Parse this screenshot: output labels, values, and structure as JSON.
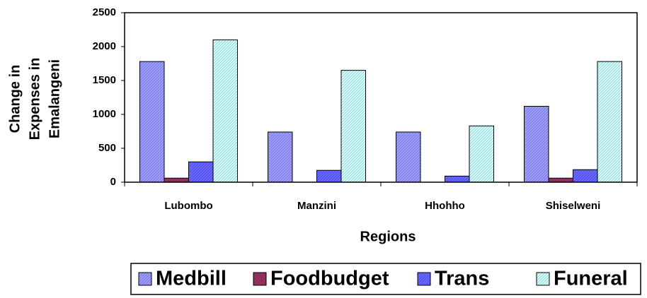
{
  "chart_data": {
    "type": "bar",
    "y_label": [
      "Change in",
      "Expenses in",
      "Emalangeni"
    ],
    "x_label": "Regions",
    "categories": [
      "Lubombo",
      "Manzini",
      "Hhohho",
      "Shiselweni"
    ],
    "series": [
      {
        "name": "Medbill",
        "color": "#9999ff",
        "values": [
          1780,
          740,
          740,
          1120
        ]
      },
      {
        "name": "Foodbudget",
        "color": "#993366",
        "values": [
          60,
          0,
          0,
          60
        ]
      },
      {
        "name": "Trans",
        "color": "#6666ff",
        "values": [
          300,
          175,
          90,
          185
        ]
      },
      {
        "name": "Funeral",
        "color": "#ccffff",
        "values": [
          2100,
          1650,
          830,
          1780
        ]
      }
    ],
    "ylim": [
      0,
      2500
    ],
    "yticks": [
      0,
      500,
      1000,
      1500,
      2000,
      2500
    ],
    "legend": "bottom"
  }
}
